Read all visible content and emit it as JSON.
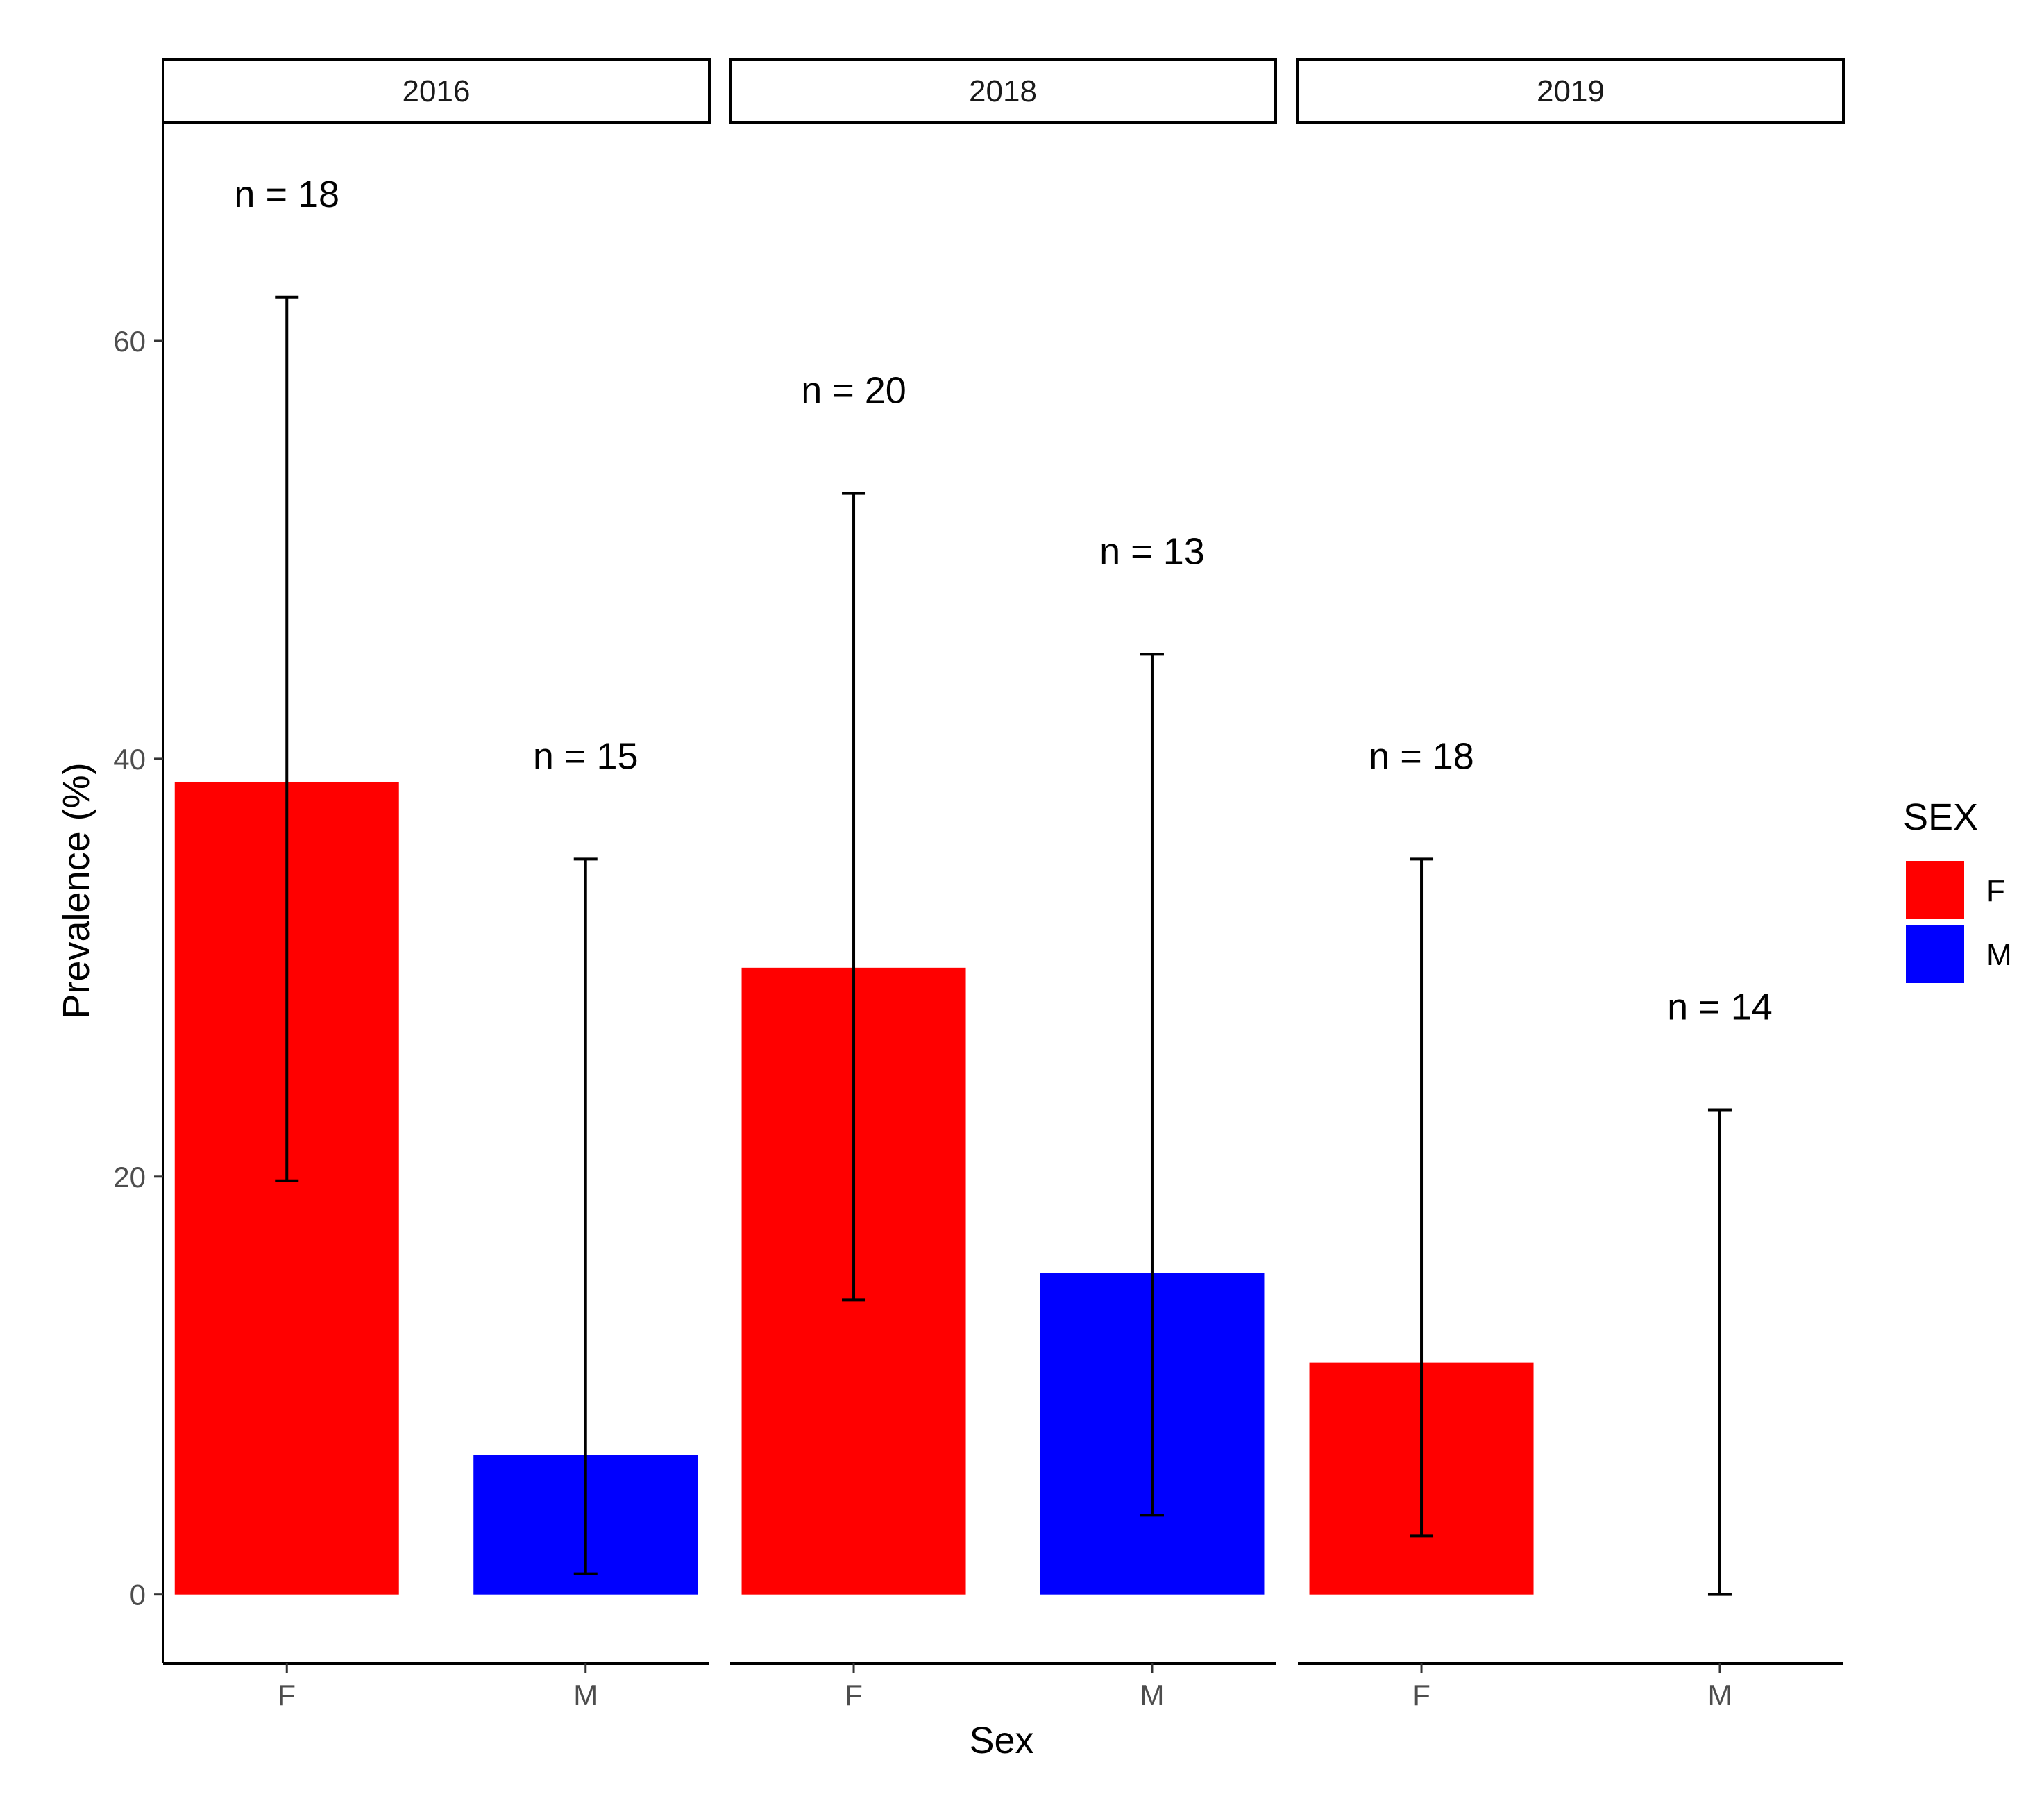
{
  "chart_data": {
    "type": "bar",
    "facet_by": "year",
    "facets": [
      {
        "label": "2016",
        "bars": [
          {
            "category": "F",
            "value": 38.9,
            "ci_low": 19.8,
            "ci_high": 62.1,
            "n_label": "n = 18"
          },
          {
            "category": "M",
            "value": 6.7,
            "ci_low": 1.0,
            "ci_high": 35.2,
            "n_label": "n = 15"
          }
        ]
      },
      {
        "label": "2018",
        "bars": [
          {
            "category": "F",
            "value": 30.0,
            "ci_low": 14.1,
            "ci_high": 52.7,
            "n_label": "n = 20"
          },
          {
            "category": "M",
            "value": 15.4,
            "ci_low": 3.8,
            "ci_high": 45.0,
            "n_label": "n = 13"
          }
        ]
      },
      {
        "label": "2019",
        "bars": [
          {
            "category": "F",
            "value": 11.1,
            "ci_low": 2.8,
            "ci_high": 35.2,
            "n_label": "n = 18"
          },
          {
            "category": "M",
            "value": 0,
            "ci_low": 0,
            "ci_high": 23.2,
            "n_label": "n = 14"
          }
        ]
      }
    ],
    "xlabel": "Sex",
    "ylabel": "Prevalence (%)",
    "ylim": [
      -3.3,
      70.4
    ],
    "yticks": [
      0,
      20,
      40,
      60
    ],
    "legend": {
      "title": "SEX",
      "placement": "right",
      "entries": [
        {
          "label": "F",
          "color": "#ff0000"
        },
        {
          "label": "M",
          "color": "#0000ff"
        }
      ]
    },
    "colors": {
      "F": "#ff0000",
      "M": "#0000ff"
    },
    "grid": false
  }
}
